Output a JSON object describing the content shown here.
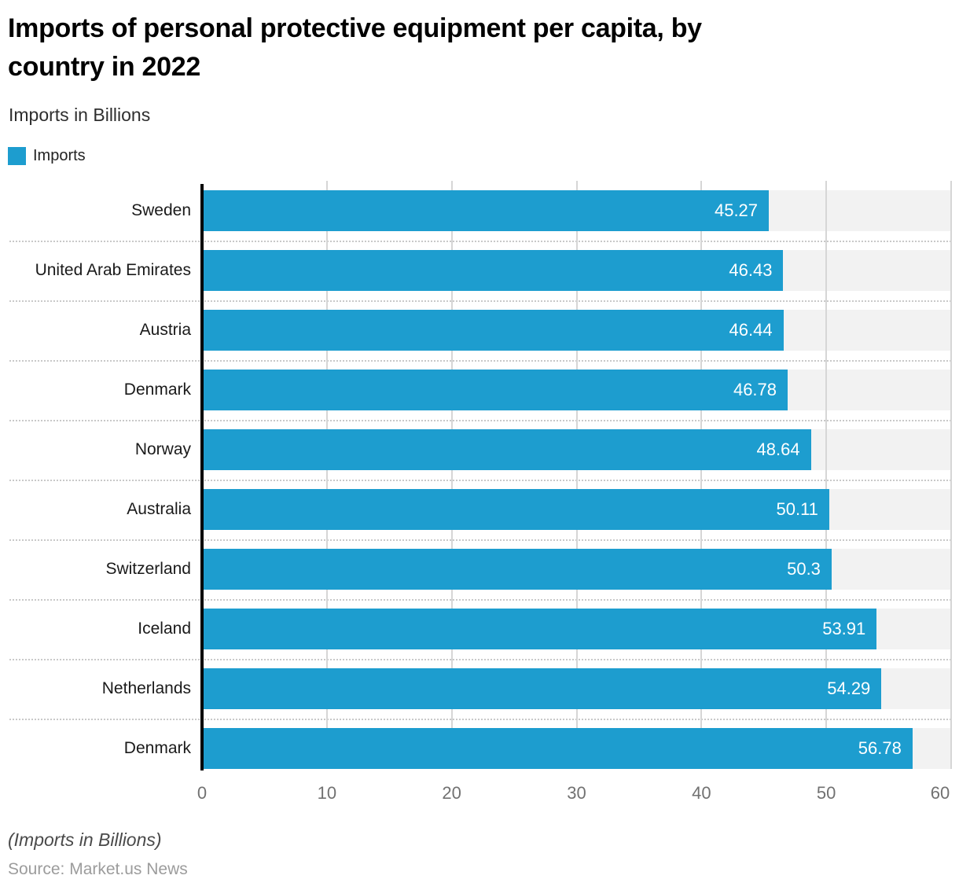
{
  "header": {
    "title_line1": "Imports of personal protective equipment per capita, by",
    "title_line2": "country in 2022",
    "subtitle": "Imports in Billions"
  },
  "legend": {
    "label": "Imports"
  },
  "footer": {
    "note": "(Imports in Billions)",
    "source": "Source: Market.us News"
  },
  "colors": {
    "bar": "#1d9dcf",
    "track": "#f2f2f2",
    "gridline": "#d6d6d6",
    "axis": "#000000",
    "separator": "#c9c9c9",
    "tick_text": "#717171",
    "category_text": "#1a1a1a",
    "value_text": "#ffffff"
  },
  "chart_data": {
    "type": "bar",
    "orientation": "horizontal",
    "title": "Imports of personal protective equipment per capita, by country in 2022",
    "subtitle": "Imports in Billions",
    "legend": [
      "Imports"
    ],
    "legend_position": "top-left",
    "grid": "vertical",
    "categories": [
      "Sweden",
      "United Arab Emirates",
      "Austria",
      "Denmark",
      "Norway",
      "Australia",
      "Switzerland",
      "Iceland",
      "Netherlands",
      "Denmark"
    ],
    "values": [
      45.27,
      46.43,
      46.44,
      46.78,
      48.64,
      50.11,
      50.3,
      53.91,
      54.29,
      56.78
    ],
    "value_labels": [
      "45.27",
      "46.43",
      "46.44",
      "46.78",
      "48.64",
      "50.11",
      "50.3",
      "53.91",
      "54.29",
      "56.78"
    ],
    "x_ticks": [
      0,
      10,
      20,
      30,
      40,
      50,
      60
    ],
    "xlim": [
      0,
      60
    ],
    "xlabel": "",
    "ylabel": ""
  }
}
